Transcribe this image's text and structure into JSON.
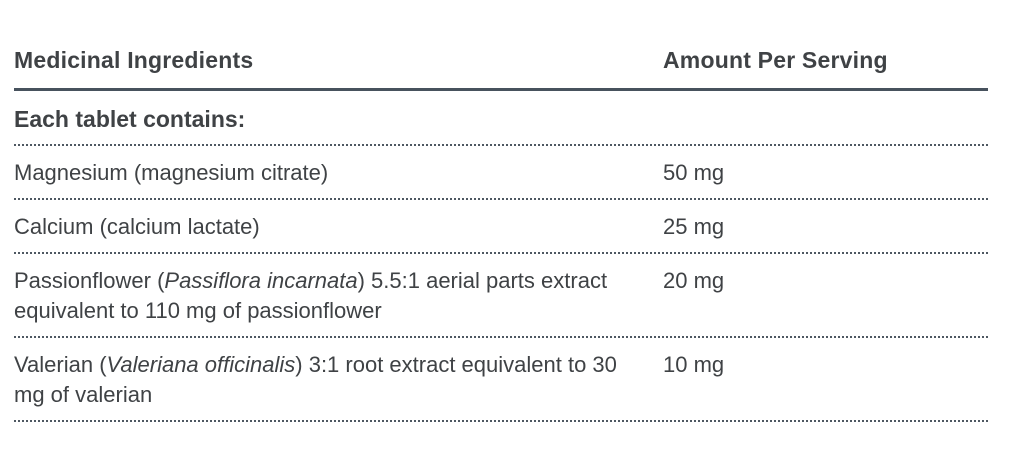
{
  "colors": {
    "text": "#3F4245",
    "header_rule": "#47525D",
    "row_rule": "#4E5862",
    "background": "#FFFFFF"
  },
  "table": {
    "header": {
      "col1": "Medicinal Ingredients",
      "col2": "Amount Per Serving"
    },
    "section_header": "Each tablet contains:",
    "rows": [
      {
        "prefix": "Magnesium (magnesium citrate)",
        "latin": "",
        "suffix": "",
        "amount": "50 mg"
      },
      {
        "prefix": "Calcium (calcium lactate)",
        "latin": "",
        "suffix": "",
        "amount": "25 mg"
      },
      {
        "prefix": "Passionflower (",
        "latin": "Passiflora incarnata",
        "suffix": ") 5.5:1 aerial parts extract equivalent to 110 mg of passionflower",
        "amount": "20 mg"
      },
      {
        "prefix": "Valerian (",
        "latin": "Valeriana officinalis",
        "suffix": ") 3:1 root extract equivalent to 30 mg of valerian",
        "amount": "10 mg"
      }
    ]
  }
}
